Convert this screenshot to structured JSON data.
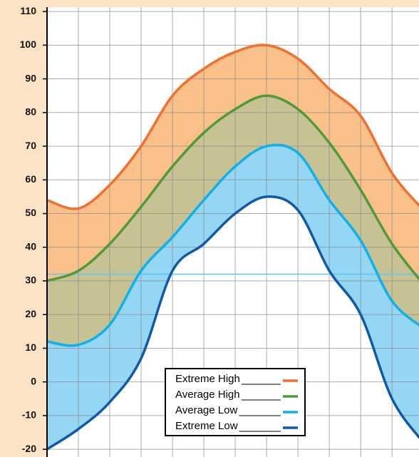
{
  "chart_data": {
    "type": "line",
    "x": [
      0,
      1,
      2,
      3,
      4,
      5,
      6,
      7,
      8,
      9,
      10,
      11,
      12
    ],
    "xlim": [
      0,
      11.86
    ],
    "ylim": [
      -22.3,
      111.3
    ],
    "yticks": [
      -20,
      -10,
      0,
      10,
      20,
      30,
      40,
      50,
      60,
      70,
      80,
      90,
      100,
      110
    ],
    "grid": true,
    "hline": {
      "value": 32,
      "color": "#5cc8ee"
    },
    "series": [
      {
        "name": "Extreme High",
        "color": "#f07030",
        "fill": "#f9c08a",
        "values": [
          54,
          51.5,
          58.5,
          70,
          85,
          93,
          98,
          100,
          96,
          87,
          79,
          62,
          51
        ]
      },
      {
        "name": "Average High",
        "color": "#509a38",
        "fill": "#c6c294",
        "values": [
          30,
          33,
          41,
          52,
          64,
          74,
          81,
          85,
          81,
          71,
          57,
          41,
          29
        ]
      },
      {
        "name": "Average Low",
        "color": "#10b0e8",
        "fill": "#94d6f4",
        "values": [
          12,
          11,
          17,
          33,
          43,
          54,
          64,
          70,
          68,
          54,
          42,
          24,
          16
        ]
      },
      {
        "name": "Extreme Low",
        "color": "#1058a8",
        "fill": "#ffffff",
        "values": [
          -20,
          -14,
          -6,
          7,
          33,
          41,
          50,
          55,
          51,
          33,
          20,
          -5,
          -18
        ]
      }
    ],
    "legend": "bottom-center"
  }
}
